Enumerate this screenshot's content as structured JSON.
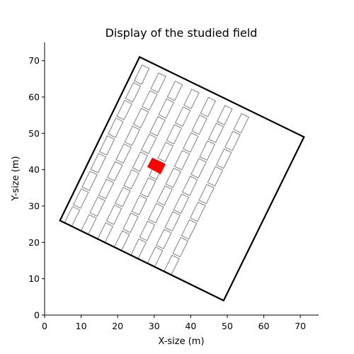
{
  "chart_data": {
    "type": "scatter",
    "title": "Display of the studied field",
    "xlabel": "X-size (m)",
    "ylabel": "Y-size (m)",
    "xlim": [
      0,
      75
    ],
    "ylim": [
      0,
      75
    ],
    "xticks": [
      0,
      10,
      20,
      30,
      40,
      50,
      60,
      70
    ],
    "yticks": [
      0,
      10,
      20,
      30,
      40,
      50,
      60,
      70
    ],
    "grid": false,
    "field_boundary": {
      "color": "#000000",
      "vertices": [
        [
          4.2,
          26.0
        ],
        [
          26.0,
          71.0
        ],
        [
          71.0,
          49.0
        ],
        [
          49.0,
          4.0
        ]
      ]
    },
    "plots": {
      "edge_color": "#808080",
      "fill": "none",
      "rows": 7,
      "segments_per_row": 9,
      "row_start": [
        5.5,
        25.5
      ],
      "row_step": [
        4.54,
        -2.23
      ],
      "segment_step": [
        2.38,
        4.87
      ],
      "width": 2.2,
      "length": 4.85
    },
    "highlight": {
      "color": "#ff0000",
      "polygon": [
        [
          28.2,
          40.8
        ],
        [
          29.5,
          43.2
        ],
        [
          33.0,
          41.5
        ],
        [
          31.7,
          38.9
        ]
      ]
    }
  }
}
